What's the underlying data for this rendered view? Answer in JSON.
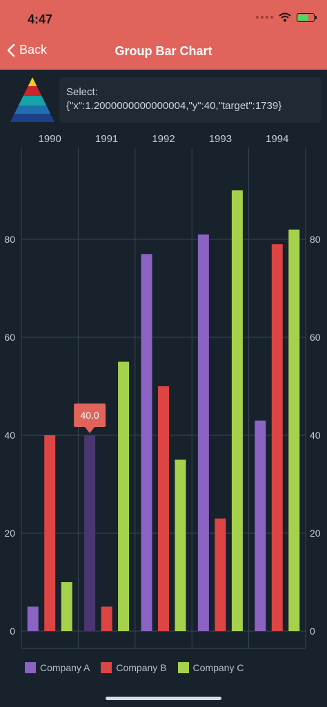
{
  "status": {
    "time": "4:47"
  },
  "nav": {
    "back_label": "Back",
    "title": "Group Bar Chart"
  },
  "select": {
    "label": "Select:",
    "value": "{\"x\":1.2000000000000004,\"y\":40,\"target\":1739}"
  },
  "tooltip": {
    "text": "40.0"
  },
  "colors": {
    "header": "#e0645c",
    "background": "#17222d",
    "company_a": "#8a63c3",
    "company_b": "#dd4444",
    "company_c": "#a6d14c",
    "selected_bar": "#4a3670",
    "tooltip": "#e0645c"
  },
  "chart_data": {
    "type": "bar",
    "title": "",
    "categories": [
      "1990",
      "1991",
      "1992",
      "1993",
      "1994"
    ],
    "series": [
      {
        "name": "Company A",
        "values": [
          5,
          40,
          77,
          81,
          43
        ]
      },
      {
        "name": "Company B",
        "values": [
          40,
          5,
          50,
          23,
          79
        ]
      },
      {
        "name": "Company C",
        "values": [
          10,
          55,
          35,
          90,
          82
        ]
      }
    ],
    "yticks": [
      "0",
      "20",
      "40",
      "60",
      "80"
    ],
    "ylim": [
      0,
      100
    ],
    "grid": true,
    "legend": "bottom",
    "selected": {
      "series": 0,
      "category": 1,
      "value": 40
    }
  }
}
